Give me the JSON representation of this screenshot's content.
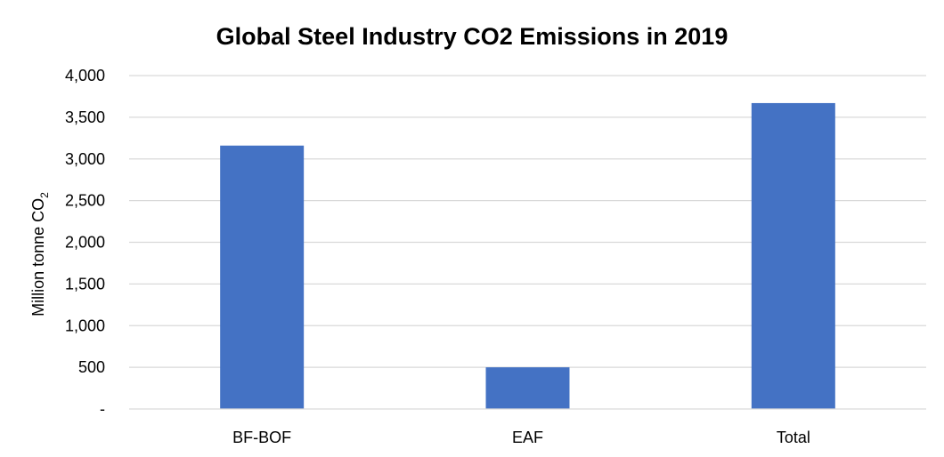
{
  "chart_data": {
    "type": "bar",
    "title": "Global Steel Industry CO2 Emissions in 2019",
    "xlabel": "",
    "ylabel": "Million tonne CO",
    "ylabel_subscript": "2",
    "categories": [
      "BF-BOF",
      "EAF",
      "Total"
    ],
    "series": [
      {
        "values": [
          3160,
          500,
          3670
        ],
        "color": "#4472c4"
      }
    ],
    "ylim": [
      0,
      4000
    ],
    "yticks": [
      0,
      500,
      1000,
      1500,
      2000,
      2500,
      3000,
      3500,
      4000
    ],
    "ytick_labels": [
      "-",
      "500",
      "1,000",
      "1,500",
      "2,000",
      "2,500",
      "3,000",
      "3,500",
      "4,000"
    ],
    "grid": true,
    "legend": "none"
  }
}
